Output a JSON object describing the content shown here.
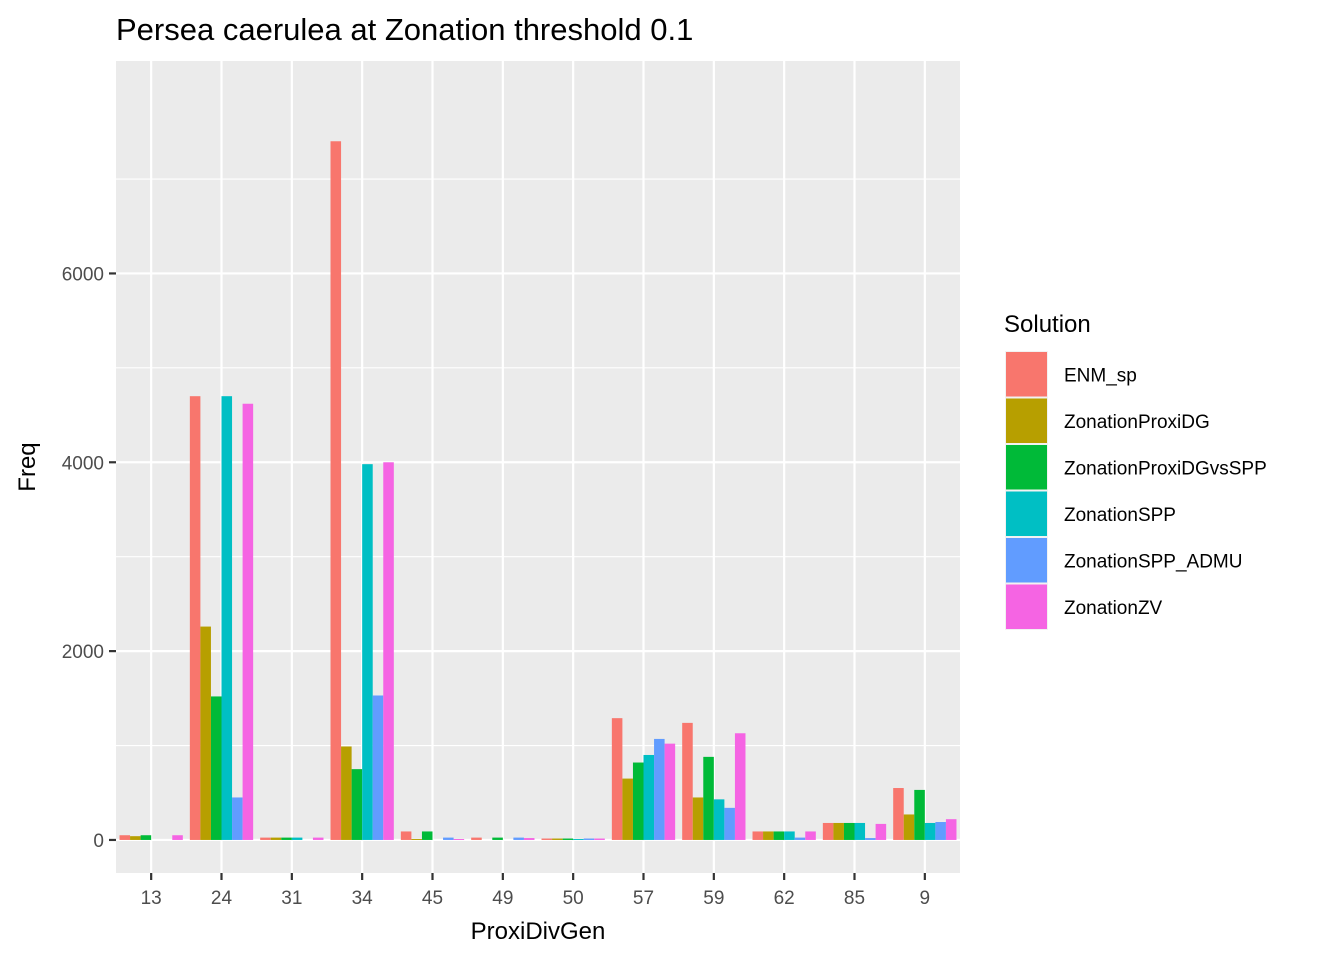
{
  "chart_data": {
    "type": "bar",
    "title": "Persea caerulea at Zonation threshold 0.1",
    "xlabel": "ProxiDivGen",
    "ylabel": "Freq",
    "ylim": [
      -350,
      8250
    ],
    "yticks": [
      0,
      2000,
      4000,
      6000
    ],
    "grid": true,
    "legend": {
      "title": "Solution",
      "placement": "right"
    },
    "categories": [
      "13",
      "24",
      "31",
      "34",
      "45",
      "49",
      "50",
      "57",
      "59",
      "62",
      "85",
      "9"
    ],
    "series": [
      {
        "name": "ENM_sp",
        "color": "#F8766D",
        "values": [
          50,
          4700,
          25,
          7400,
          90,
          25,
          15,
          1290,
          1240,
          90,
          180,
          550
        ]
      },
      {
        "name": "ZonationProxiDG",
        "color": "#B79F00",
        "values": [
          40,
          2260,
          25,
          990,
          10,
          null,
          15,
          650,
          450,
          90,
          180,
          270
        ]
      },
      {
        "name": "ZonationProxiDGvsSPP",
        "color": "#00BA38",
        "values": [
          50,
          1520,
          25,
          750,
          90,
          25,
          15,
          820,
          880,
          90,
          180,
          530
        ]
      },
      {
        "name": "ZonationSPP",
        "color": "#00BFC4",
        "values": [
          null,
          4700,
          25,
          3980,
          null,
          null,
          10,
          900,
          430,
          90,
          180,
          180
        ]
      },
      {
        "name": "ZonationSPP_ADMU",
        "color": "#619CFF",
        "values": [
          null,
          450,
          null,
          1530,
          25,
          25,
          15,
          1070,
          340,
          25,
          20,
          190
        ]
      },
      {
        "name": "ZonationZV",
        "color": "#F564E3",
        "values": [
          50,
          4620,
          25,
          4000,
          10,
          20,
          15,
          1020,
          1130,
          90,
          170,
          220
        ]
      }
    ]
  }
}
